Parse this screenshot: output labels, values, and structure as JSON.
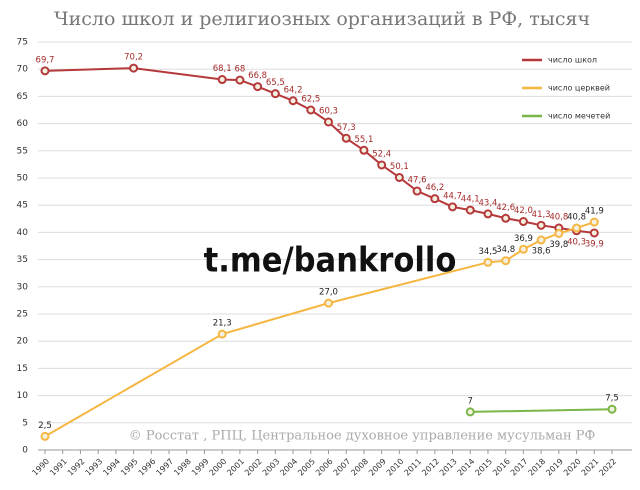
{
  "chart_data": {
    "type": "line",
    "title": "Число школ и религиозных организаций в РФ, тысяч",
    "annotations": [
      "t.me/bankrollo",
      "© Росстат , РПЦ, Центральное духовное управление мусульман РФ"
    ],
    "xlim": [
      1990,
      2022
    ],
    "xticks": [
      1990,
      1991,
      1992,
      1993,
      1994,
      1995,
      1996,
      1997,
      1998,
      1999,
      2000,
      2001,
      2002,
      2003,
      2004,
      2005,
      2006,
      2007,
      2008,
      2009,
      2010,
      2011,
      2012,
      2013,
      2014,
      2015,
      2016,
      2017,
      2018,
      2019,
      2020,
      2021,
      2022
    ],
    "ylim": [
      0,
      75
    ],
    "yticks": [
      0,
      5,
      10,
      15,
      20,
      25,
      30,
      35,
      40,
      45,
      50,
      55,
      60,
      65,
      70,
      75
    ],
    "grid": true,
    "legend": "upper right",
    "series": [
      {
        "name": "число школ",
        "color": "#b5393b",
        "x": [
          1990,
          1995,
          2000,
          2001,
          2002,
          2003,
          2004,
          2005,
          2006,
          2007,
          2008,
          2009,
          2010,
          2011,
          2012,
          2013,
          2014,
          2015,
          2016,
          2017,
          2018,
          2019,
          2020,
          2021
        ],
        "values": [
          69.7,
          70.2,
          68.1,
          68,
          66.8,
          65.5,
          64.2,
          62.5,
          60.3,
          57.3,
          55.1,
          52.4,
          50.1,
          47.6,
          46.2,
          44.7,
          44.1,
          43.4,
          42.6,
          42.0,
          41.3,
          40.8,
          40.3,
          39.9
        ],
        "value_labels": [
          "69,7",
          "70,2",
          "68,1",
          "68",
          "66,8",
          "65,5",
          "64,2",
          "62,5",
          "60,3",
          "57,3",
          "55,1",
          "52,4",
          "50,1",
          "47,6",
          "46,2",
          "44,7",
          "44,1",
          "43,4",
          "42,6",
          "42,0",
          "41,3",
          "40,8",
          "40,3",
          "39,9"
        ]
      },
      {
        "name": "число церквей",
        "color": "#f5b642",
        "x": [
          1990,
          2000,
          2006,
          2015,
          2016,
          2017,
          2018,
          2019,
          2020,
          2021
        ],
        "values": [
          2.5,
          21.3,
          27.0,
          34.5,
          34.8,
          36.9,
          38.6,
          39.8,
          40.8,
          41.9
        ],
        "value_labels": [
          "2,5",
          "21,3",
          "27,0",
          "34,5",
          "34,8",
          "36,9",
          "38,6",
          "39,8",
          "40,8",
          "41,9"
        ]
      },
      {
        "name": "число мечетей",
        "color": "#7ab648",
        "x": [
          2014,
          2022
        ],
        "values": [
          7,
          7.5
        ],
        "value_labels": [
          "7",
          "7,5"
        ]
      }
    ]
  }
}
